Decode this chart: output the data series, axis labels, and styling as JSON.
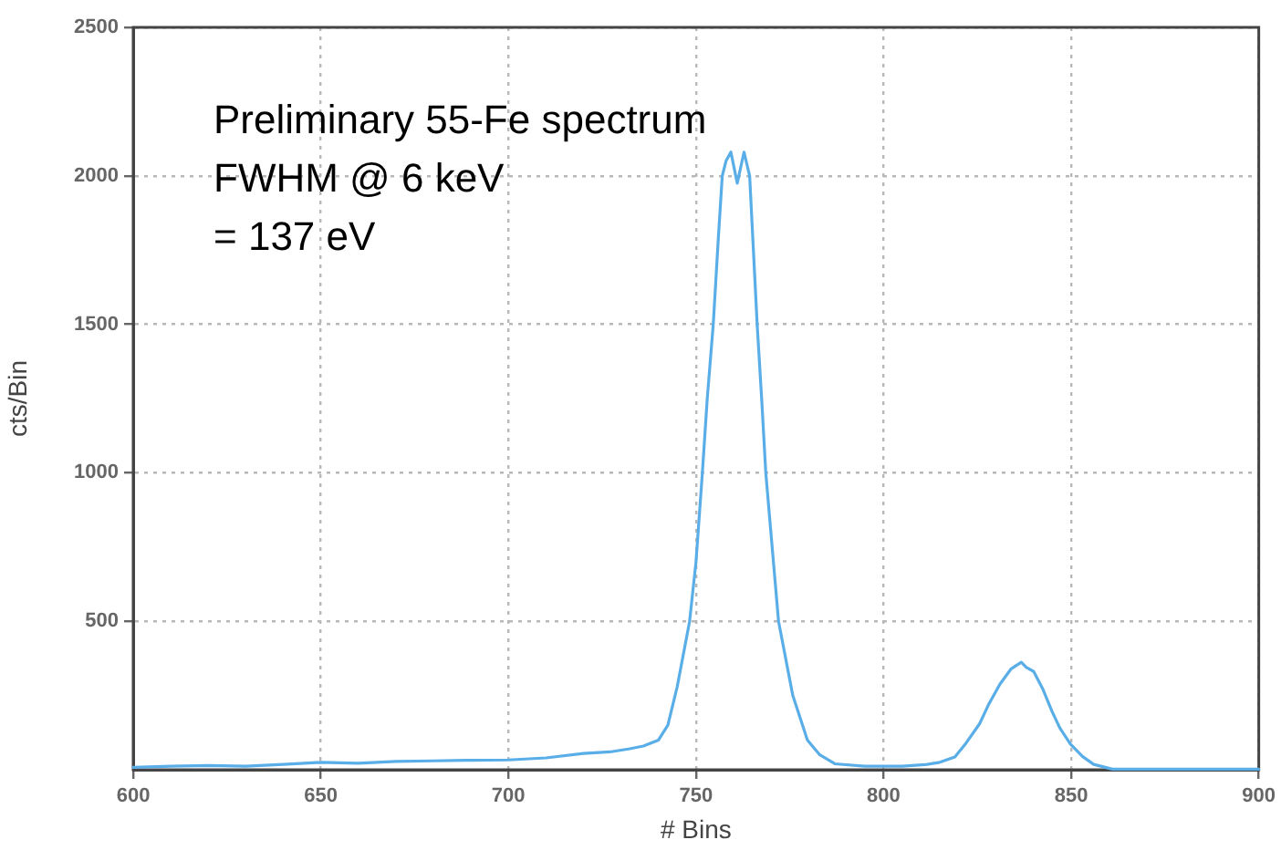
{
  "chart_data": {
    "type": "line",
    "xlabel": "# Bins",
    "ylabel": "cts/Bin",
    "annotations": [
      "Preliminary 55-Fe spectrum",
      "FWHM @ 6 keV",
      "= 137 eV"
    ],
    "series": [
      {
        "color": "#5aaee8",
        "x": [
          600,
          610,
          620,
          630,
          640,
          650,
          660,
          670,
          680,
          690,
          700,
          710,
          720,
          727,
          732,
          736,
          740,
          742.5,
          745,
          748.3,
          750,
          751.7,
          753,
          754.6,
          756,
          757,
          758,
          759.3,
          761,
          762.8,
          764.3,
          765.3,
          766.3,
          767.5,
          768.6,
          770.3,
          772,
          775.8,
          779.7,
          783,
          787,
          795,
          805,
          811,
          815,
          819,
          822,
          825.6,
          828,
          831,
          834,
          836.7,
          838,
          840,
          842.5,
          844.9,
          847,
          849.8,
          853,
          856,
          861,
          870,
          880,
          890,
          900
        ],
        "values": [
          8,
          12,
          14,
          12,
          18,
          25,
          22,
          28,
          30,
          32,
          33,
          40,
          55,
          60,
          70,
          80,
          100,
          150,
          280,
          500,
          700,
          1000,
          1250,
          1500,
          1800,
          2000,
          2050,
          2080,
          1975,
          2080,
          2000,
          1750,
          1500,
          1250,
          1000,
          750,
          500,
          250,
          100,
          50,
          20,
          12,
          12,
          17,
          25,
          43,
          90,
          155,
          220,
          288,
          340,
          362,
          345,
          331,
          270,
          196,
          140,
          86,
          45,
          18,
          2,
          2,
          2,
          2,
          2
        ]
      }
    ],
    "xlim": [
      600,
      900
    ],
    "xticks": [
      600,
      650,
      700,
      750,
      800,
      850,
      900
    ],
    "ylim": [
      0,
      2500
    ],
    "yticks": [
      500,
      1000,
      1500,
      2000,
      2500
    ],
    "grid": true,
    "legend": false,
    "marker": "none",
    "line_style": "solid"
  }
}
